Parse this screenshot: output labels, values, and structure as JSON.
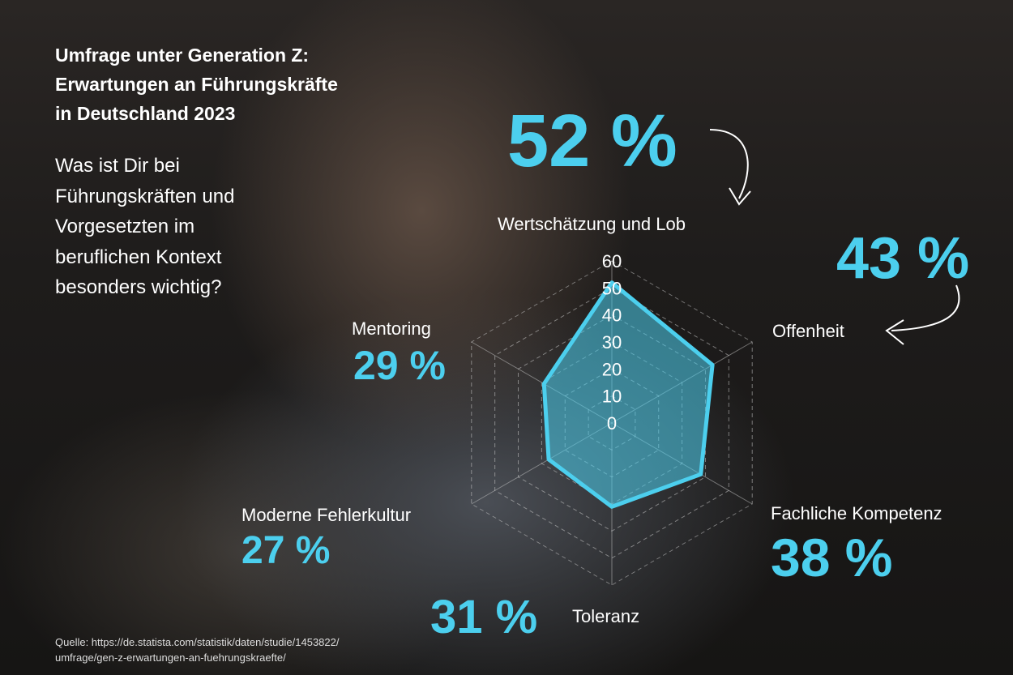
{
  "title_lines": [
    "Umfrage unter Generation Z:",
    "Erwartungen an Führungskräfte",
    "in Deutschland 2023"
  ],
  "question_lines": [
    "Was ist Dir bei",
    "Führungskräften und",
    "Vorgesetzten im",
    "beruflichen Kontext",
    "besonders wichtig?"
  ],
  "source_lines": [
    "Quelle: https://de.statista.com/statistik/daten/studie/1453822/",
    "umfrage/gen-z-erwartungen-an-fuehrungskraefte/"
  ],
  "chart_data": {
    "type": "radar",
    "categories": [
      "Wertschätzung und Lob",
      "Offenheit",
      "Fachliche Kompetenz",
      "Toleranz",
      "Moderne Fehlerkultur",
      "Mentoring"
    ],
    "values": [
      52,
      43,
      38,
      31,
      27,
      29
    ],
    "value_labels": [
      "52 %",
      "43 %",
      "38 %",
      "31 %",
      "27 %",
      "29 %"
    ],
    "rlim": [
      0,
      60
    ],
    "ticks": [
      "0",
      "10",
      "20",
      "30",
      "40",
      "50",
      "60"
    ],
    "grid": true,
    "series_color": "#4ccfee"
  }
}
